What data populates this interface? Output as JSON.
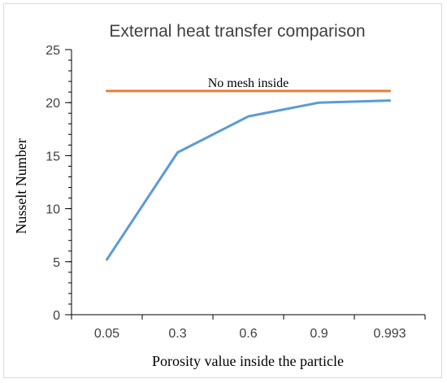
{
  "chart_data": {
    "type": "line",
    "title": "External heat transfer comparison",
    "xlabel": "Porosity value inside the particle",
    "ylabel": "Nusselt Number",
    "categories": [
      "0.05",
      "0.3",
      "0.6",
      "0.9",
      "0.993"
    ],
    "ylim": [
      0,
      25
    ],
    "yticks": [
      0,
      5,
      10,
      15,
      20,
      25
    ],
    "y_minor_step": 1,
    "grid": false,
    "legend": "none",
    "series": [
      {
        "values": [
          5.2,
          15.3,
          18.7,
          20.0,
          20.2
        ],
        "color": "#5b9bd5"
      },
      {
        "values": [
          21.1,
          21.1,
          21.1,
          21.1,
          21.1
        ],
        "color": "#ed7d31"
      }
    ],
    "annotations": [
      {
        "text": "No mesh inside",
        "series_index": 1
      }
    ]
  }
}
